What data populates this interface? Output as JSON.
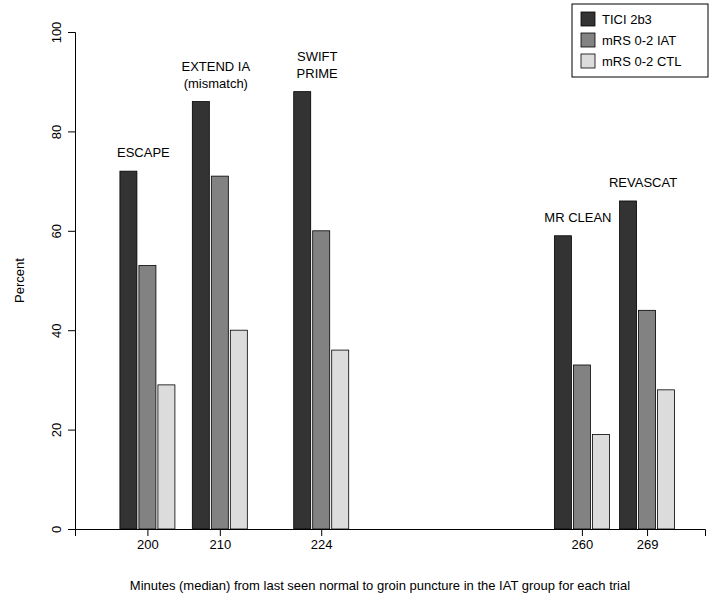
{
  "chart_data": {
    "type": "bar",
    "x_label": "Minutes (median) from last seen normal to groin puncture in the IAT group for each trial",
    "y_label": "Percent",
    "x": [
      200,
      210,
      224,
      260,
      269
    ],
    "annotations": [
      [
        "ESCAPE"
      ],
      [
        "EXTEND IA",
        "(mismatch)"
      ],
      [
        "SWIFT",
        "PRIME"
      ],
      [
        "MR CLEAN"
      ],
      [
        "REVASCAT"
      ]
    ],
    "series": [
      {
        "name": "TICI 2b3",
        "color": "#333333",
        "values": [
          72,
          86,
          88,
          59,
          66
        ]
      },
      {
        "name": "mRS 0-2 IAT",
        "color": "#828282",
        "values": [
          53,
          71,
          60,
          33,
          44
        ]
      },
      {
        "name": "mRS 0-2 CTL",
        "color": "#dcdcdc",
        "values": [
          29,
          40,
          36,
          19,
          28
        ]
      }
    ],
    "xlim": [
      190,
      277
    ],
    "xticks": [
      200,
      210,
      224,
      260,
      269
    ],
    "ylim": [
      0,
      100
    ],
    "yticks": [
      0,
      20,
      40,
      60,
      80,
      100
    ],
    "legend": "top-right",
    "grid": false
  }
}
